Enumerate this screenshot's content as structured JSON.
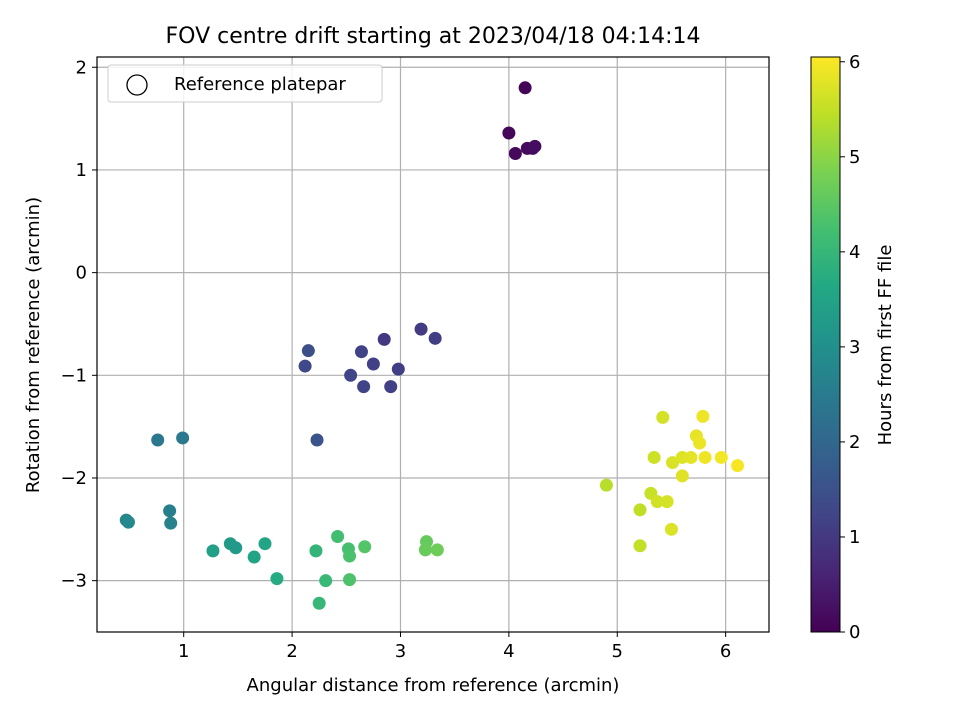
{
  "chart_data": {
    "type": "scatter",
    "title": "FOV centre drift starting at 2023/04/18 04:14:14",
    "xlabel": "Angular distance from reference (arcmin)",
    "ylabel": "Rotation from reference (arcmin)",
    "xlim": [
      0.2,
      6.4
    ],
    "ylim": [
      -3.5,
      2.1
    ],
    "x_ticks": [
      1,
      2,
      3,
      4,
      5,
      6
    ],
    "y_ticks": [
      2,
      1,
      0,
      -1,
      -2,
      -3
    ],
    "grid": true,
    "legend": {
      "position": "top-left",
      "entries": [
        {
          "label": "Reference platepar",
          "marker": "open-circle"
        }
      ]
    },
    "colorbar": {
      "label": "Hours from first FF file",
      "range": [
        0,
        6.05
      ],
      "ticks": [
        0,
        1,
        2,
        3,
        4,
        5,
        6
      ],
      "colormap": "viridis"
    },
    "series": [
      {
        "x": [
          4.15,
          4.0,
          4.06,
          4.17,
          4.22,
          4.24,
          2.85,
          3.19,
          3.32,
          2.15,
          2.12,
          2.64,
          2.75,
          2.98,
          2.54,
          2.66,
          2.91,
          2.23,
          0.76,
          0.99,
          0.87,
          0.88,
          0.47,
          0.49,
          1.27,
          1.43,
          1.48,
          1.65,
          1.75,
          1.86,
          2.22,
          2.25,
          2.31,
          2.42,
          2.52,
          2.53,
          2.53,
          2.67,
          3.24,
          3.23,
          3.34,
          4.9,
          5.21,
          5.21,
          5.31,
          5.34,
          5.37,
          5.42,
          5.46,
          5.51,
          5.5,
          5.6,
          5.6,
          5.68,
          5.73,
          5.76,
          5.79,
          5.81,
          5.96,
          6.11
        ],
        "y": [
          1.8,
          1.36,
          1.16,
          1.21,
          1.21,
          1.23,
          -0.65,
          -0.55,
          -0.64,
          -0.76,
          -0.91,
          -0.77,
          -0.89,
          -0.94,
          -1.0,
          -1.11,
          -1.11,
          -1.63,
          -1.63,
          -1.61,
          -2.32,
          -2.44,
          -2.41,
          -2.43,
          -2.71,
          -2.64,
          -2.68,
          -2.77,
          -2.64,
          -2.98,
          -2.71,
          -3.22,
          -3.0,
          -2.57,
          -2.69,
          -2.76,
          -2.99,
          -2.67,
          -2.62,
          -2.7,
          -2.7,
          -2.07,
          -2.31,
          -2.66,
          -2.15,
          -1.8,
          -2.23,
          -1.41,
          -2.23,
          -1.85,
          -2.5,
          -1.8,
          -1.98,
          -1.8,
          -1.59,
          -1.66,
          -1.4,
          -1.8,
          -1.8,
          -1.88
        ],
        "hours": [
          0.05,
          0.1,
          0.12,
          0.15,
          0.18,
          0.2,
          1.0,
          1.05,
          1.1,
          1.45,
          1.3,
          1.2,
          1.15,
          1.1,
          1.25,
          1.2,
          1.15,
          1.55,
          2.4,
          2.45,
          2.6,
          2.65,
          2.75,
          2.8,
          3.4,
          3.3,
          3.25,
          3.5,
          3.55,
          3.7,
          3.95,
          4.0,
          4.05,
          4.2,
          4.25,
          4.3,
          4.35,
          4.4,
          4.6,
          4.65,
          4.7,
          5.4,
          5.45,
          5.5,
          5.55,
          5.6,
          5.62,
          5.65,
          5.67,
          5.7,
          5.72,
          5.75,
          5.78,
          5.8,
          5.85,
          5.88,
          5.9,
          5.93,
          5.96,
          6.0
        ]
      }
    ]
  }
}
